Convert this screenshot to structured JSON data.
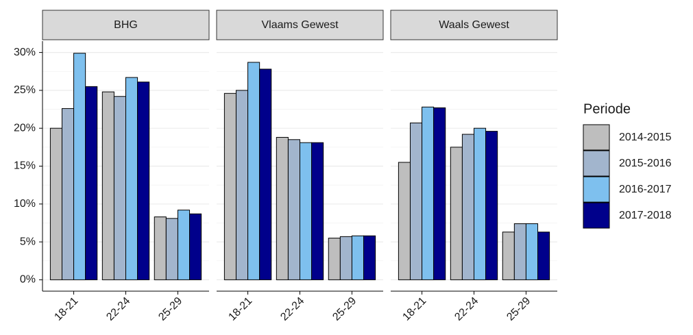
{
  "chart_data": {
    "type": "bar",
    "facets": [
      "BHG",
      "Vlaams Gewest",
      "Waals Gewest"
    ],
    "categories": [
      "18-21",
      "22-24",
      "25-29"
    ],
    "legend_title": "Periode",
    "legend": "right",
    "grid": true,
    "ylim": [
      -1.5,
      31.5
    ],
    "yticks": [
      {
        "value": 0,
        "label": "0%"
      },
      {
        "value": 5,
        "label": "5%"
      },
      {
        "value": 10,
        "label": "10%"
      },
      {
        "value": 15,
        "label": "15%"
      },
      {
        "value": 20,
        "label": "20%"
      },
      {
        "value": 25,
        "label": "25%"
      },
      {
        "value": 30,
        "label": "30%"
      }
    ],
    "series": [
      {
        "name": "2014-2015",
        "color": "#bebebe",
        "values": [
          [
            20.0,
            24.8,
            8.3
          ],
          [
            24.6,
            18.8,
            5.5
          ],
          [
            15.5,
            17.5,
            6.3
          ]
        ]
      },
      {
        "name": "2015-2016",
        "color": "#a2b5cd",
        "values": [
          [
            22.6,
            24.2,
            8.1
          ],
          [
            25.0,
            18.5,
            5.7
          ],
          [
            20.7,
            19.2,
            7.4
          ]
        ]
      },
      {
        "name": "2016-2017",
        "color": "#7ec0ee",
        "values": [
          [
            29.9,
            26.7,
            9.2
          ],
          [
            28.7,
            18.1,
            5.8
          ],
          [
            22.8,
            20.0,
            7.4
          ]
        ]
      },
      {
        "name": "2017-2018",
        "color": "#00008b",
        "values": [
          [
            25.5,
            26.1,
            8.7
          ],
          [
            27.8,
            18.1,
            5.8
          ],
          [
            22.7,
            19.6,
            6.3
          ]
        ]
      }
    ]
  }
}
